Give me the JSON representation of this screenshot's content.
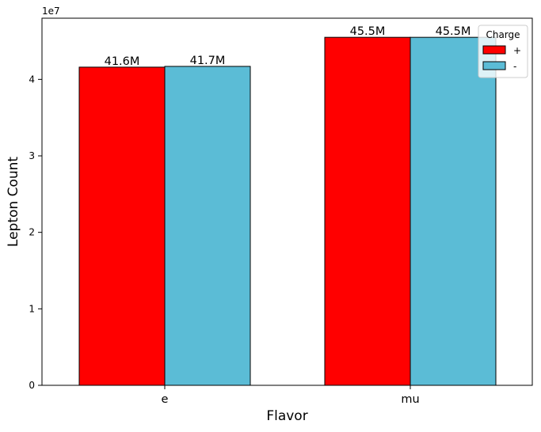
{
  "chart_data": {
    "type": "bar",
    "categories": [
      "e",
      "mu"
    ],
    "series": [
      {
        "name": "+",
        "color": "#ff0000",
        "values": [
          41600000,
          45500000
        ],
        "labels": [
          "41.6M",
          "45.5M"
        ]
      },
      {
        "name": "-",
        "color": "#5bbcd6",
        "values": [
          41700000,
          45500000
        ],
        "labels": [
          "41.7M",
          "45.5M"
        ]
      }
    ],
    "xlabel": "Flavor",
    "ylabel": "Lepton Count",
    "ylim": [
      0,
      48000000
    ],
    "yticks": [
      0,
      1,
      2,
      3,
      4
    ],
    "yticks_values": [
      0,
      10000000,
      20000000,
      30000000,
      40000000
    ],
    "y_offset_label": "1e7",
    "legend": {
      "title": "Charge",
      "placement": "top-right"
    },
    "grid": false
  }
}
